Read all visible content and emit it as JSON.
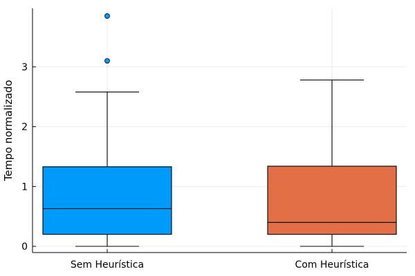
{
  "chart_data": {
    "type": "box",
    "title": "",
    "xlabel": "",
    "ylabel": "Tempo normalizado",
    "ylim": [
      -0.1,
      3.95
    ],
    "yticks": [
      0,
      1,
      2,
      3
    ],
    "grid": true,
    "legend": "none",
    "categories": [
      "Sem Heurística",
      "Com Heurística"
    ],
    "series": [
      {
        "category": "Sem Heurística",
        "color": "#009AFA",
        "whisker_low": 0.0,
        "q1": 0.2,
        "median": 0.63,
        "q3": 1.33,
        "whisker_high": 2.58,
        "outliers": [
          3.1,
          3.85
        ]
      },
      {
        "category": "Com Heurística",
        "color": "#E26F46",
        "whisker_low": 0.0,
        "q1": 0.2,
        "median": 0.4,
        "q3": 1.34,
        "whisker_high": 2.78,
        "outliers": []
      }
    ]
  }
}
